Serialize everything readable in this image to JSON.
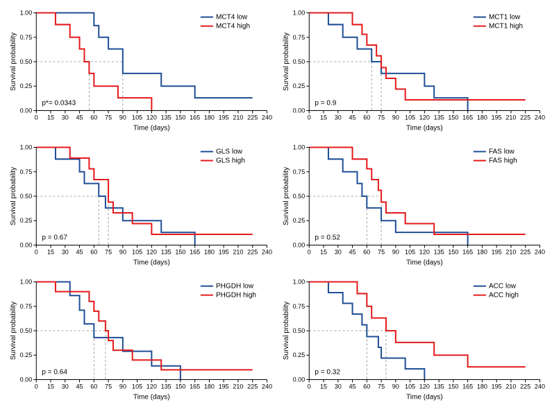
{
  "global": {
    "xlabel": "Time (days)",
    "ylabel": "Survival probability",
    "xlim": [
      0,
      240
    ],
    "ylim": [
      0,
      1.0
    ],
    "xtick_step": 15,
    "yticks": [
      0,
      0.25,
      0.5,
      0.75,
      1.0
    ],
    "ref_y": 0.5,
    "low_color": "#1f4e96",
    "high_color": "#e41a1c",
    "background_color": "#ffffff",
    "tick_fontsize": 9,
    "label_fontsize": 10,
    "legend_fontsize": 10,
    "line_width": 2
  },
  "panels": [
    {
      "name": "MCT4",
      "p_text": "p*= 0.0343",
      "legend_low": "MCT4 low",
      "legend_high": "MCT4 high",
      "ref_x_low": 90,
      "ref_x_high": 55,
      "low": [
        [
          0,
          1.0
        ],
        [
          60,
          1.0
        ],
        [
          60,
          0.87
        ],
        [
          65,
          0.87
        ],
        [
          65,
          0.75
        ],
        [
          75,
          0.75
        ],
        [
          75,
          0.63
        ],
        [
          90,
          0.63
        ],
        [
          90,
          0.38
        ],
        [
          130,
          0.38
        ],
        [
          130,
          0.25
        ],
        [
          165,
          0.25
        ],
        [
          165,
          0.13
        ],
        [
          225,
          0.13
        ]
      ],
      "high": [
        [
          0,
          1.0
        ],
        [
          20,
          1.0
        ],
        [
          20,
          0.88
        ],
        [
          35,
          0.88
        ],
        [
          35,
          0.75
        ],
        [
          45,
          0.75
        ],
        [
          45,
          0.63
        ],
        [
          50,
          0.63
        ],
        [
          50,
          0.5
        ],
        [
          55,
          0.5
        ],
        [
          55,
          0.38
        ],
        [
          60,
          0.38
        ],
        [
          60,
          0.25
        ],
        [
          85,
          0.25
        ],
        [
          85,
          0.13
        ],
        [
          120,
          0.13
        ],
        [
          120,
          0.0
        ]
      ]
    },
    {
      "name": "MCT1",
      "p_text": "p = 0.9",
      "legend_low": "MCT1 low",
      "legend_high": "MCT1 high",
      "ref_x_low": 65,
      "ref_x_high": 75,
      "low": [
        [
          0,
          1.0
        ],
        [
          20,
          1.0
        ],
        [
          20,
          0.88
        ],
        [
          35,
          0.88
        ],
        [
          35,
          0.75
        ],
        [
          50,
          0.75
        ],
        [
          50,
          0.63
        ],
        [
          65,
          0.63
        ],
        [
          65,
          0.5
        ],
        [
          75,
          0.5
        ],
        [
          75,
          0.38
        ],
        [
          120,
          0.38
        ],
        [
          120,
          0.25
        ],
        [
          130,
          0.25
        ],
        [
          130,
          0.13
        ],
        [
          165,
          0.13
        ],
        [
          165,
          0.0
        ]
      ],
      "high": [
        [
          0,
          1.0
        ],
        [
          45,
          1.0
        ],
        [
          45,
          0.88
        ],
        [
          55,
          0.88
        ],
        [
          55,
          0.78
        ],
        [
          60,
          0.78
        ],
        [
          60,
          0.67
        ],
        [
          70,
          0.67
        ],
        [
          70,
          0.56
        ],
        [
          75,
          0.56
        ],
        [
          75,
          0.44
        ],
        [
          80,
          0.44
        ],
        [
          80,
          0.33
        ],
        [
          90,
          0.33
        ],
        [
          90,
          0.22
        ],
        [
          100,
          0.22
        ],
        [
          100,
          0.11
        ],
        [
          225,
          0.11
        ]
      ]
    },
    {
      "name": "GLS",
      "p_text": "p = 0.67",
      "legend_low": "GLS low",
      "legend_high": "GLS high",
      "ref_x_low": 65,
      "ref_x_high": 75,
      "low": [
        [
          0,
          1.0
        ],
        [
          20,
          1.0
        ],
        [
          20,
          0.88
        ],
        [
          45,
          0.88
        ],
        [
          45,
          0.75
        ],
        [
          50,
          0.75
        ],
        [
          50,
          0.63
        ],
        [
          65,
          0.63
        ],
        [
          65,
          0.5
        ],
        [
          72,
          0.5
        ],
        [
          72,
          0.38
        ],
        [
          90,
          0.38
        ],
        [
          90,
          0.25
        ],
        [
          130,
          0.25
        ],
        [
          130,
          0.13
        ],
        [
          165,
          0.13
        ],
        [
          165,
          0.0
        ]
      ],
      "high": [
        [
          0,
          1.0
        ],
        [
          35,
          1.0
        ],
        [
          35,
          0.89
        ],
        [
          55,
          0.89
        ],
        [
          55,
          0.78
        ],
        [
          60,
          0.78
        ],
        [
          60,
          0.67
        ],
        [
          75,
          0.67
        ],
        [
          75,
          0.44
        ],
        [
          80,
          0.44
        ],
        [
          80,
          0.33
        ],
        [
          100,
          0.33
        ],
        [
          100,
          0.22
        ],
        [
          120,
          0.22
        ],
        [
          120,
          0.11
        ],
        [
          225,
          0.11
        ]
      ]
    },
    {
      "name": "FAS",
      "p_text": "p = 0.52",
      "legend_low": "FAS low",
      "legend_high": "FAS high",
      "ref_x_low": 60,
      "ref_x_high": 75,
      "low": [
        [
          0,
          1.0
        ],
        [
          20,
          1.0
        ],
        [
          20,
          0.88
        ],
        [
          35,
          0.88
        ],
        [
          35,
          0.75
        ],
        [
          50,
          0.75
        ],
        [
          50,
          0.63
        ],
        [
          55,
          0.63
        ],
        [
          55,
          0.5
        ],
        [
          60,
          0.5
        ],
        [
          60,
          0.38
        ],
        [
          75,
          0.38
        ],
        [
          75,
          0.25
        ],
        [
          90,
          0.25
        ],
        [
          90,
          0.13
        ],
        [
          165,
          0.13
        ],
        [
          165,
          0.0
        ]
      ],
      "high": [
        [
          0,
          1.0
        ],
        [
          45,
          1.0
        ],
        [
          45,
          0.88
        ],
        [
          60,
          0.88
        ],
        [
          60,
          0.78
        ],
        [
          65,
          0.78
        ],
        [
          65,
          0.67
        ],
        [
          72,
          0.67
        ],
        [
          72,
          0.56
        ],
        [
          75,
          0.56
        ],
        [
          75,
          0.44
        ],
        [
          80,
          0.44
        ],
        [
          80,
          0.33
        ],
        [
          100,
          0.33
        ],
        [
          100,
          0.22
        ],
        [
          130,
          0.22
        ],
        [
          130,
          0.11
        ],
        [
          225,
          0.11
        ]
      ]
    },
    {
      "name": "PHGDH",
      "p_text": "p = 0.64",
      "legend_low": "PHGDH low",
      "legend_high": "PHGDH high",
      "ref_x_low": 60,
      "ref_x_high": 72,
      "low": [
        [
          0,
          1.0
        ],
        [
          35,
          1.0
        ],
        [
          35,
          0.86
        ],
        [
          45,
          0.86
        ],
        [
          45,
          0.71
        ],
        [
          50,
          0.71
        ],
        [
          50,
          0.57
        ],
        [
          60,
          0.57
        ],
        [
          60,
          0.43
        ],
        [
          90,
          0.43
        ],
        [
          90,
          0.29
        ],
        [
          120,
          0.29
        ],
        [
          120,
          0.14
        ],
        [
          150,
          0.14
        ],
        [
          150,
          0.0
        ]
      ],
      "high": [
        [
          0,
          1.0
        ],
        [
          20,
          1.0
        ],
        [
          20,
          0.9
        ],
        [
          55,
          0.9
        ],
        [
          55,
          0.8
        ],
        [
          60,
          0.8
        ],
        [
          60,
          0.7
        ],
        [
          65,
          0.7
        ],
        [
          65,
          0.6
        ],
        [
          72,
          0.6
        ],
        [
          72,
          0.5
        ],
        [
          75,
          0.5
        ],
        [
          75,
          0.4
        ],
        [
          80,
          0.4
        ],
        [
          80,
          0.3
        ],
        [
          100,
          0.3
        ],
        [
          100,
          0.2
        ],
        [
          130,
          0.2
        ],
        [
          130,
          0.1
        ],
        [
          225,
          0.1
        ]
      ]
    },
    {
      "name": "ACC",
      "p_text": "p = 0.32",
      "legend_low": "ACC low",
      "legend_high": "ACC high",
      "ref_x_low": 60,
      "ref_x_high": 80,
      "low": [
        [
          0,
          1.0
        ],
        [
          20,
          1.0
        ],
        [
          20,
          0.89
        ],
        [
          35,
          0.89
        ],
        [
          35,
          0.78
        ],
        [
          45,
          0.78
        ],
        [
          45,
          0.67
        ],
        [
          55,
          0.67
        ],
        [
          55,
          0.56
        ],
        [
          60,
          0.56
        ],
        [
          60,
          0.44
        ],
        [
          72,
          0.44
        ],
        [
          72,
          0.33
        ],
        [
          75,
          0.33
        ],
        [
          75,
          0.22
        ],
        [
          100,
          0.22
        ],
        [
          100,
          0.11
        ],
        [
          120,
          0.11
        ],
        [
          120,
          0.0
        ]
      ],
      "high": [
        [
          0,
          1.0
        ],
        [
          50,
          1.0
        ],
        [
          50,
          0.88
        ],
        [
          60,
          0.88
        ],
        [
          60,
          0.75
        ],
        [
          65,
          0.75
        ],
        [
          65,
          0.63
        ],
        [
          80,
          0.63
        ],
        [
          80,
          0.5
        ],
        [
          90,
          0.5
        ],
        [
          90,
          0.38
        ],
        [
          130,
          0.38
        ],
        [
          130,
          0.25
        ],
        [
          165,
          0.25
        ],
        [
          165,
          0.13
        ],
        [
          225,
          0.13
        ]
      ]
    }
  ]
}
